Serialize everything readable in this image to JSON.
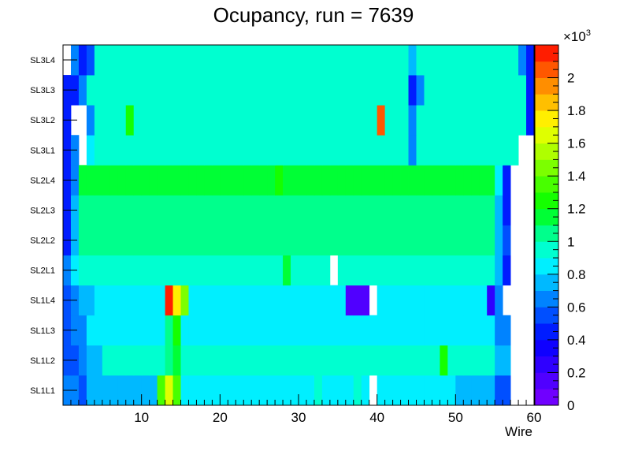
{
  "chart_data": {
    "type": "heatmap",
    "title": "Ocupancy, run = 7639",
    "xlabel": "Wire",
    "ylabel": "",
    "xlim": [
      0,
      60
    ],
    "x_ticks": [
      "10",
      "20",
      "30",
      "40",
      "50",
      "60"
    ],
    "y_categories": [
      "SL1L1",
      "SL1L2",
      "SL1L3",
      "SL1L4",
      "SL2L1",
      "SL2L2",
      "SL2L3",
      "SL2L4",
      "SL3L1",
      "SL3L2",
      "SL3L3",
      "SL3L4"
    ],
    "z_multiplier": "×10",
    "z_multiplier_exp": "3",
    "z_range": [
      0,
      2.2
    ],
    "z_ticks": [
      "0",
      "0.2",
      "0.4",
      "0.6",
      "0.8",
      "1",
      "1.2",
      "1.4",
      "1.6",
      "1.8",
      "2"
    ],
    "z_scale": "rainbow",
    "z_units": "×10^3 hits",
    "values": [
      [
        0.6,
        0.6,
        0.5,
        0.78,
        0.78,
        0.78,
        0.78,
        0.78,
        0.78,
        0.78,
        0.78,
        0.78,
        1.35,
        1.6,
        1.4,
        0.85,
        0.85,
        0.85,
        0.85,
        0.85,
        0.85,
        0.85,
        0.85,
        0.85,
        0.85,
        0.85,
        0.85,
        0.85,
        0.85,
        0.85,
        0.85,
        0.85,
        0.95,
        0.85,
        0.85,
        0.85,
        0.85,
        0.95,
        0.85,
        null,
        0.8,
        0.85,
        0.8,
        0.85,
        0.85,
        0.85,
        0.85,
        0.85,
        0.85,
        0.8,
        0.78,
        0.78,
        0.78,
        0.78,
        0.78,
        0.58,
        0.58,
        null,
        null,
        null
      ],
      [
        0.5,
        0.55,
        0.65,
        0.78,
        0.78,
        0.9,
        0.9,
        0.9,
        0.9,
        0.9,
        0.9,
        0.9,
        0.9,
        1.0,
        1.15,
        0.9,
        0.9,
        0.9,
        0.9,
        0.9,
        0.9,
        0.9,
        0.9,
        0.9,
        0.9,
        0.9,
        0.9,
        0.9,
        0.9,
        0.9,
        0.9,
        0.9,
        0.9,
        0.9,
        0.9,
        0.9,
        0.9,
        0.9,
        0.9,
        0.9,
        0.9,
        0.9,
        0.9,
        0.9,
        0.9,
        0.9,
        0.9,
        0.9,
        1.2,
        0.9,
        0.9,
        0.9,
        0.9,
        0.9,
        0.9,
        0.78,
        0.78,
        null,
        null,
        null
      ],
      [
        0.5,
        0.6,
        0.7,
        0.82,
        0.82,
        0.82,
        0.82,
        0.82,
        0.82,
        0.82,
        0.82,
        0.82,
        0.82,
        1.0,
        1.3,
        0.82,
        0.82,
        0.82,
        0.82,
        0.82,
        0.82,
        0.82,
        0.82,
        0.82,
        0.82,
        0.82,
        0.82,
        0.82,
        0.82,
        0.82,
        0.82,
        0.82,
        0.82,
        0.82,
        0.82,
        0.82,
        0.82,
        0.82,
        0.82,
        0.82,
        0.82,
        0.82,
        0.82,
        0.82,
        0.82,
        0.82,
        0.82,
        0.82,
        0.82,
        0.82,
        0.82,
        0.82,
        0.82,
        0.82,
        0.82,
        0.7,
        0.7,
        null,
        null,
        null
      ],
      [
        0.5,
        0.65,
        0.75,
        0.75,
        0.82,
        0.82,
        0.82,
        0.82,
        0.82,
        0.82,
        0.82,
        0.82,
        0.82,
        2.1,
        1.75,
        1.5,
        0.85,
        0.85,
        0.85,
        0.85,
        0.85,
        0.85,
        0.85,
        0.85,
        0.85,
        0.85,
        0.85,
        0.85,
        0.85,
        0.85,
        0.85,
        0.85,
        0.85,
        0.85,
        0.85,
        0.85,
        0.15,
        0.15,
        0.15,
        null,
        0.82,
        0.82,
        0.82,
        0.82,
        0.82,
        0.82,
        0.82,
        0.82,
        0.82,
        0.82,
        0.82,
        0.82,
        0.82,
        0.82,
        0.2,
        0.65,
        null,
        null,
        null,
        null
      ],
      [
        0.7,
        0.82,
        0.98,
        0.98,
        0.98,
        0.98,
        0.98,
        0.98,
        0.98,
        0.98,
        0.98,
        0.98,
        0.98,
        0.98,
        0.98,
        0.98,
        0.98,
        0.98,
        0.98,
        0.98,
        0.98,
        0.98,
        0.98,
        0.98,
        0.98,
        0.98,
        0.98,
        0.98,
        1.1,
        0.98,
        0.98,
        0.98,
        0.98,
        0.98,
        null,
        0.98,
        0.98,
        0.98,
        0.98,
        0.98,
        0.98,
        0.98,
        0.98,
        0.98,
        0.98,
        0.98,
        0.98,
        0.98,
        0.98,
        0.98,
        0.98,
        0.98,
        0.98,
        0.98,
        0.98,
        0.78,
        0.4,
        null,
        null,
        null
      ],
      [
        0.4,
        0.78,
        1.05,
        1.05,
        1.05,
        1.05,
        1.05,
        1.05,
        1.05,
        1.05,
        1.05,
        1.05,
        1.05,
        1.05,
        1.05,
        1.05,
        1.05,
        1.05,
        1.05,
        1.05,
        1.05,
        1.05,
        1.05,
        1.05,
        1.05,
        1.05,
        1.05,
        1.05,
        1.05,
        1.05,
        1.05,
        1.05,
        1.05,
        1.05,
        1.05,
        1.05,
        1.05,
        1.05,
        1.05,
        1.05,
        1.05,
        1.05,
        1.05,
        1.05,
        1.05,
        1.05,
        1.05,
        1.05,
        1.05,
        1.05,
        1.05,
        1.05,
        1.05,
        1.05,
        1.05,
        0.78,
        0.5,
        null,
        null,
        null
      ],
      [
        0.4,
        0.75,
        1.05,
        1.05,
        1.05,
        1.05,
        1.05,
        1.05,
        1.05,
        1.05,
        1.05,
        1.05,
        1.05,
        1.05,
        1.05,
        1.05,
        1.05,
        1.05,
        1.05,
        1.05,
        1.05,
        1.05,
        1.05,
        1.05,
        1.05,
        1.05,
        1.05,
        1.05,
        1.05,
        1.05,
        1.05,
        1.05,
        1.05,
        1.05,
        1.05,
        1.05,
        1.05,
        1.05,
        1.05,
        1.05,
        1.05,
        1.05,
        1.05,
        1.05,
        1.05,
        1.05,
        1.05,
        1.05,
        1.05,
        1.05,
        1.05,
        1.05,
        1.05,
        1.05,
        1.05,
        0.78,
        0.4,
        null,
        null,
        null
      ],
      [
        0.45,
        0.7,
        1.1,
        1.1,
        1.1,
        1.1,
        1.1,
        1.1,
        1.1,
        1.1,
        1.1,
        1.1,
        1.1,
        1.1,
        1.1,
        1.1,
        1.1,
        1.1,
        1.1,
        1.1,
        1.1,
        1.1,
        1.1,
        1.1,
        1.1,
        1.1,
        1.1,
        1.25,
        1.1,
        1.1,
        1.1,
        1.1,
        1.1,
        1.1,
        1.1,
        1.1,
        1.1,
        1.1,
        1.1,
        1.1,
        1.1,
        1.1,
        1.1,
        1.1,
        1.1,
        1.1,
        1.1,
        1.1,
        1.1,
        1.1,
        1.1,
        1.1,
        1.1,
        1.1,
        1.1,
        0.8,
        0.4,
        null,
        null,
        null
      ],
      [
        0.45,
        0.65,
        null,
        0.82,
        0.9,
        0.9,
        0.9,
        0.9,
        0.9,
        0.9,
        0.9,
        0.9,
        0.9,
        0.9,
        0.9,
        0.9,
        0.9,
        0.9,
        0.9,
        0.9,
        0.9,
        0.9,
        0.9,
        0.9,
        0.9,
        0.9,
        0.9,
        0.9,
        0.9,
        0.9,
        0.9,
        0.9,
        0.9,
        0.9,
        0.9,
        0.9,
        0.9,
        0.9,
        0.9,
        0.9,
        0.9,
        0.9,
        0.9,
        0.9,
        0.65,
        0.9,
        0.9,
        0.9,
        0.9,
        0.9,
        0.9,
        0.9,
        0.9,
        0.9,
        0.9,
        0.9,
        0.9,
        0.9,
        null,
        null
      ],
      [
        0.4,
        null,
        null,
        0.6,
        0.9,
        0.9,
        0.9,
        0.9,
        1.25,
        0.9,
        0.9,
        0.9,
        0.9,
        0.9,
        0.9,
        0.9,
        0.9,
        0.9,
        0.9,
        0.9,
        0.9,
        0.9,
        0.9,
        0.9,
        0.9,
        0.9,
        0.9,
        0.9,
        0.9,
        0.9,
        0.9,
        0.9,
        0.9,
        0.9,
        0.9,
        0.9,
        0.9,
        0.9,
        0.9,
        0.9,
        2.0,
        0.9,
        0.9,
        0.9,
        0.7,
        0.9,
        0.9,
        0.9,
        0.9,
        0.9,
        0.9,
        0.9,
        0.9,
        0.9,
        0.9,
        0.9,
        0.9,
        0.9,
        0.9,
        0.45
      ],
      [
        0.4,
        0.4,
        0.6,
        0.9,
        0.9,
        0.9,
        0.9,
        0.9,
        0.9,
        0.9,
        0.9,
        0.9,
        0.9,
        0.9,
        0.9,
        0.9,
        0.9,
        0.9,
        0.9,
        0.9,
        0.9,
        0.9,
        0.9,
        0.9,
        0.9,
        0.9,
        0.9,
        0.9,
        0.9,
        0.9,
        0.9,
        0.9,
        0.9,
        0.9,
        0.9,
        0.9,
        0.9,
        0.9,
        0.9,
        0.9,
        0.9,
        0.9,
        0.9,
        0.9,
        0.45,
        0.7,
        0.9,
        0.9,
        0.9,
        0.9,
        0.9,
        0.9,
        0.9,
        0.9,
        0.9,
        0.9,
        0.9,
        0.9,
        0.9,
        0.4
      ],
      [
        null,
        0.65,
        0.4,
        0.5,
        0.92,
        0.92,
        0.92,
        0.92,
        0.92,
        0.92,
        0.92,
        0.92,
        0.92,
        0.92,
        0.92,
        0.92,
        0.92,
        0.92,
        0.92,
        0.92,
        0.92,
        0.92,
        0.92,
        0.92,
        0.92,
        0.92,
        0.92,
        0.92,
        0.92,
        0.92,
        0.92,
        0.92,
        0.92,
        0.92,
        0.92,
        0.92,
        0.92,
        0.92,
        0.92,
        0.92,
        0.92,
        0.92,
        0.92,
        0.92,
        0.75,
        0.92,
        0.92,
        0.92,
        0.92,
        0.92,
        0.92,
        0.92,
        0.92,
        0.92,
        0.92,
        0.92,
        0.92,
        0.92,
        0.7,
        0.4
      ]
    ],
    "grid": false,
    "legend": "none"
  }
}
